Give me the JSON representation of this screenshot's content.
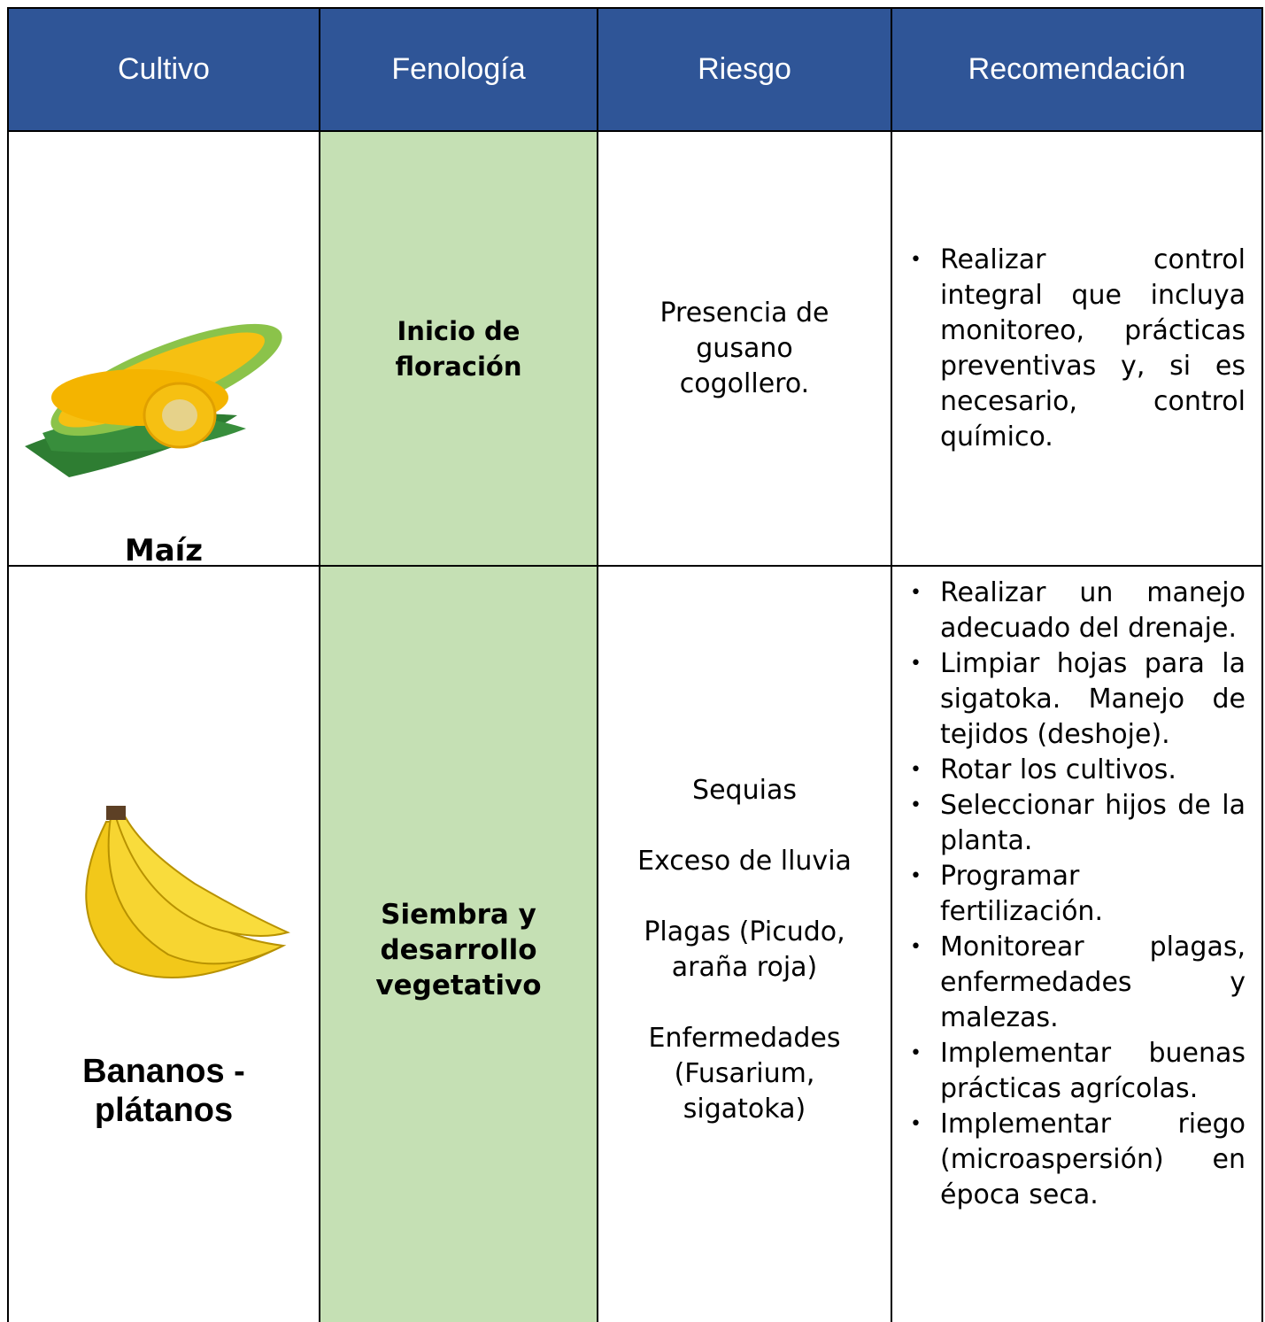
{
  "table": {
    "header": [
      "Cultivo",
      "Fenología",
      "Riesgo",
      "Recomendación"
    ],
    "rows": [
      {
        "crop": "Maíz",
        "phenology": "Inicio de floración",
        "risks": [
          "Presencia de gusano cogollero."
        ],
        "recommendations": [
          "Realizar control integral que incluya monitoreo, prácticas preventivas y, si es necesario, control químico."
        ]
      },
      {
        "crop": "Bananos - plátanos",
        "phenology": "Siembra y desarrollo vegetativo",
        "risks": [
          "Sequias",
          "Exceso de lluvia",
          "Plagas (Picudo, araña roja)",
          "Enfermedades (Fusarium, sigatoka)"
        ],
        "recommendations": [
          "Realizar un manejo adecuado del drenaje.",
          "Limpiar hojas para la sigatoka. Manejo de tejidos (deshoje).",
          "Rotar los cultivos.",
          "Seleccionar hijos de la planta.",
          "Programar fertilización.",
          "Monitorear plagas, enfermedades y malezas.",
          "Implementar buenas prácticas agrícolas.",
          "Implementar riego (microaspersión) en época seca."
        ]
      }
    ]
  }
}
